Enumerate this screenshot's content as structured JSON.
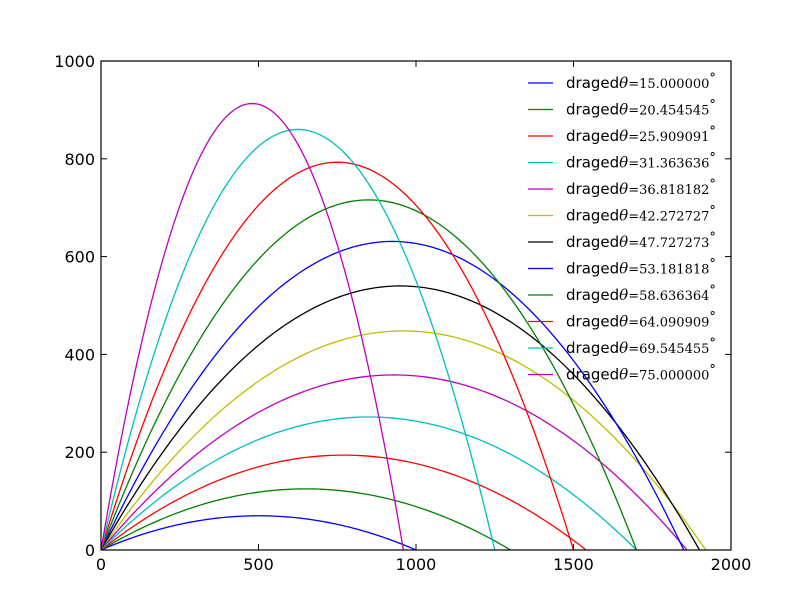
{
  "chart_data": {
    "type": "line",
    "title": "",
    "xlabel": "",
    "ylabel": "",
    "xlim": [
      0,
      2000
    ],
    "ylim": [
      0,
      1000
    ],
    "xticks": [
      "0",
      "500",
      "1000",
      "1500",
      "2000"
    ],
    "yticks": [
      "0",
      "200",
      "400",
      "600",
      "800",
      "1000"
    ],
    "grid": false,
    "legend_position": "top-right",
    "series": [
      {
        "name": "draged",
        "label": "θ = 15.000000°",
        "color": "#0000ff",
        "points": [
          [
            0,
            0
          ],
          [
            250,
            52
          ],
          [
            500,
            70
          ],
          [
            750,
            52
          ],
          [
            1000,
            0
          ]
        ]
      },
      {
        "name": "draged",
        "label": "θ = 20.454545°",
        "color": "#008000",
        "points": [
          [
            0,
            0
          ],
          [
            325,
            93
          ],
          [
            650,
            125
          ],
          [
            975,
            93
          ],
          [
            1300,
            0
          ]
        ]
      },
      {
        "name": "draged",
        "label": "θ = 25.909091°",
        "color": "#ff0000",
        "points": [
          [
            0,
            0
          ],
          [
            385,
            145
          ],
          [
            770,
            194
          ],
          [
            1155,
            145
          ],
          [
            1540,
            0
          ]
        ]
      },
      {
        "name": "draged",
        "label": "θ = 31.363636°",
        "color": "#00bfbf",
        "points": [
          [
            0,
            0
          ],
          [
            425,
            204
          ],
          [
            850,
            272
          ],
          [
            1275,
            204
          ],
          [
            1700,
            0
          ]
        ]
      },
      {
        "name": "draged",
        "label": "θ = 36.818182°",
        "color": "#bf00bf",
        "points": [
          [
            0,
            0
          ],
          [
            465,
            268
          ],
          [
            930,
            358
          ],
          [
            1395,
            268
          ],
          [
            1860,
            0
          ]
        ]
      },
      {
        "name": "draged",
        "label": "θ = 42.272727°",
        "color": "#bfbf00",
        "points": [
          [
            0,
            0
          ],
          [
            480,
            336
          ],
          [
            960,
            448
          ],
          [
            1440,
            336
          ],
          [
            1920,
            0
          ]
        ]
      },
      {
        "name": "draged",
        "label": "θ = 47.727273°",
        "color": "#000000",
        "points": [
          [
            0,
            0
          ],
          [
            475,
            405
          ],
          [
            950,
            540
          ],
          [
            1425,
            405
          ],
          [
            1900,
            0
          ]
        ]
      },
      {
        "name": "draged",
        "label": "θ = 53.181818°",
        "color": "#0000ff",
        "points": [
          [
            0,
            0
          ],
          [
            462,
            473
          ],
          [
            925,
            631
          ],
          [
            1387,
            473
          ],
          [
            1850,
            0
          ]
        ]
      },
      {
        "name": "draged",
        "label": "θ = 58.636364°",
        "color": "#008000",
        "points": [
          [
            0,
            0
          ],
          [
            425,
            537
          ],
          [
            850,
            716
          ],
          [
            1275,
            537
          ],
          [
            1700,
            0
          ]
        ]
      },
      {
        "name": "draged",
        "label": "θ = 64.090909°",
        "color": "#ff0000",
        "points": [
          [
            0,
            0
          ],
          [
            375,
            595
          ],
          [
            750,
            793
          ],
          [
            1125,
            595
          ],
          [
            1500,
            0
          ]
        ]
      },
      {
        "name": "draged",
        "label": "θ = 69.545455°",
        "color": "#00bfbf",
        "points": [
          [
            0,
            0
          ],
          [
            312,
            645
          ],
          [
            625,
            860
          ],
          [
            937,
            645
          ],
          [
            1250,
            0
          ]
        ]
      },
      {
        "name": "draged",
        "label": "θ = 75.000000°",
        "color": "#bf00bf",
        "points": [
          [
            0,
            0
          ],
          [
            240,
            685
          ],
          [
            480,
            913
          ],
          [
            720,
            685
          ],
          [
            960,
            0
          ]
        ]
      }
    ]
  }
}
